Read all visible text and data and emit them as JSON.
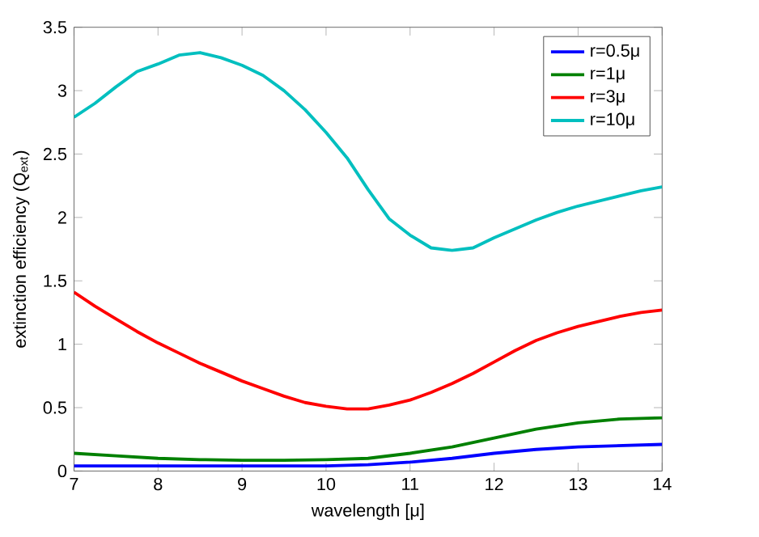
{
  "chart_data": {
    "type": "line",
    "xlabel": "wavelength [μ]",
    "ylabel": "extinction efficiency (Q$_{ext}$)",
    "x": [
      7,
      7.25,
      7.5,
      7.75,
      8,
      8.25,
      8.5,
      8.75,
      9,
      9.25,
      9.5,
      9.75,
      10,
      10.25,
      10.5,
      10.75,
      11,
      11.25,
      11.5,
      11.75,
      12,
      12.25,
      12.5,
      12.75,
      13,
      13.25,
      13.5,
      13.75,
      14
    ],
    "series": [
      {
        "name": "r=0.5μ",
        "color": "#0000ff",
        "x": [
          7,
          7.5,
          8,
          8.5,
          9,
          9.5,
          10,
          10.5,
          11,
          11.5,
          12,
          12.5,
          13,
          13.5,
          14
        ],
        "values": [
          0.04,
          0.04,
          0.04,
          0.04,
          0.04,
          0.04,
          0.04,
          0.05,
          0.07,
          0.1,
          0.14,
          0.17,
          0.19,
          0.2,
          0.21
        ]
      },
      {
        "name": "r=1μ",
        "color": "#008000",
        "x": [
          7,
          7.5,
          8,
          8.5,
          9,
          9.5,
          10,
          10.5,
          11,
          11.5,
          12,
          12.5,
          13,
          13.5,
          14
        ],
        "values": [
          0.14,
          0.12,
          0.1,
          0.09,
          0.085,
          0.085,
          0.09,
          0.1,
          0.14,
          0.19,
          0.26,
          0.33,
          0.38,
          0.41,
          0.42
        ]
      },
      {
        "name": "r=3μ",
        "color": "#ff0000",
        "values": [
          1.41,
          1.3,
          1.2,
          1.1,
          1.01,
          0.93,
          0.85,
          0.78,
          0.71,
          0.65,
          0.59,
          0.54,
          0.51,
          0.49,
          0.49,
          0.52,
          0.56,
          0.62,
          0.69,
          0.77,
          0.86,
          0.95,
          1.03,
          1.09,
          1.14,
          1.18,
          1.22,
          1.25,
          1.27
        ]
      },
      {
        "name": "r=10μ",
        "color": "#00bfbf",
        "values": [
          2.79,
          2.9,
          3.03,
          3.15,
          3.21,
          3.28,
          3.3,
          3.26,
          3.2,
          3.12,
          3.0,
          2.85,
          2.67,
          2.47,
          2.22,
          1.99,
          1.86,
          1.76,
          1.74,
          1.76,
          1.84,
          1.91,
          1.98,
          2.04,
          2.09,
          2.13,
          2.17,
          2.21,
          2.24
        ]
      }
    ],
    "xlim": [
      7,
      14
    ],
    "xticks": [
      7,
      8,
      9,
      10,
      11,
      12,
      13,
      14
    ],
    "ylim": [
      0,
      3.5
    ],
    "yticks": [
      0,
      0.5,
      1,
      1.5,
      2,
      2.5,
      3,
      3.5
    ],
    "grid": false,
    "legend": "top right",
    "marker": "none",
    "line_style": "solid"
  }
}
